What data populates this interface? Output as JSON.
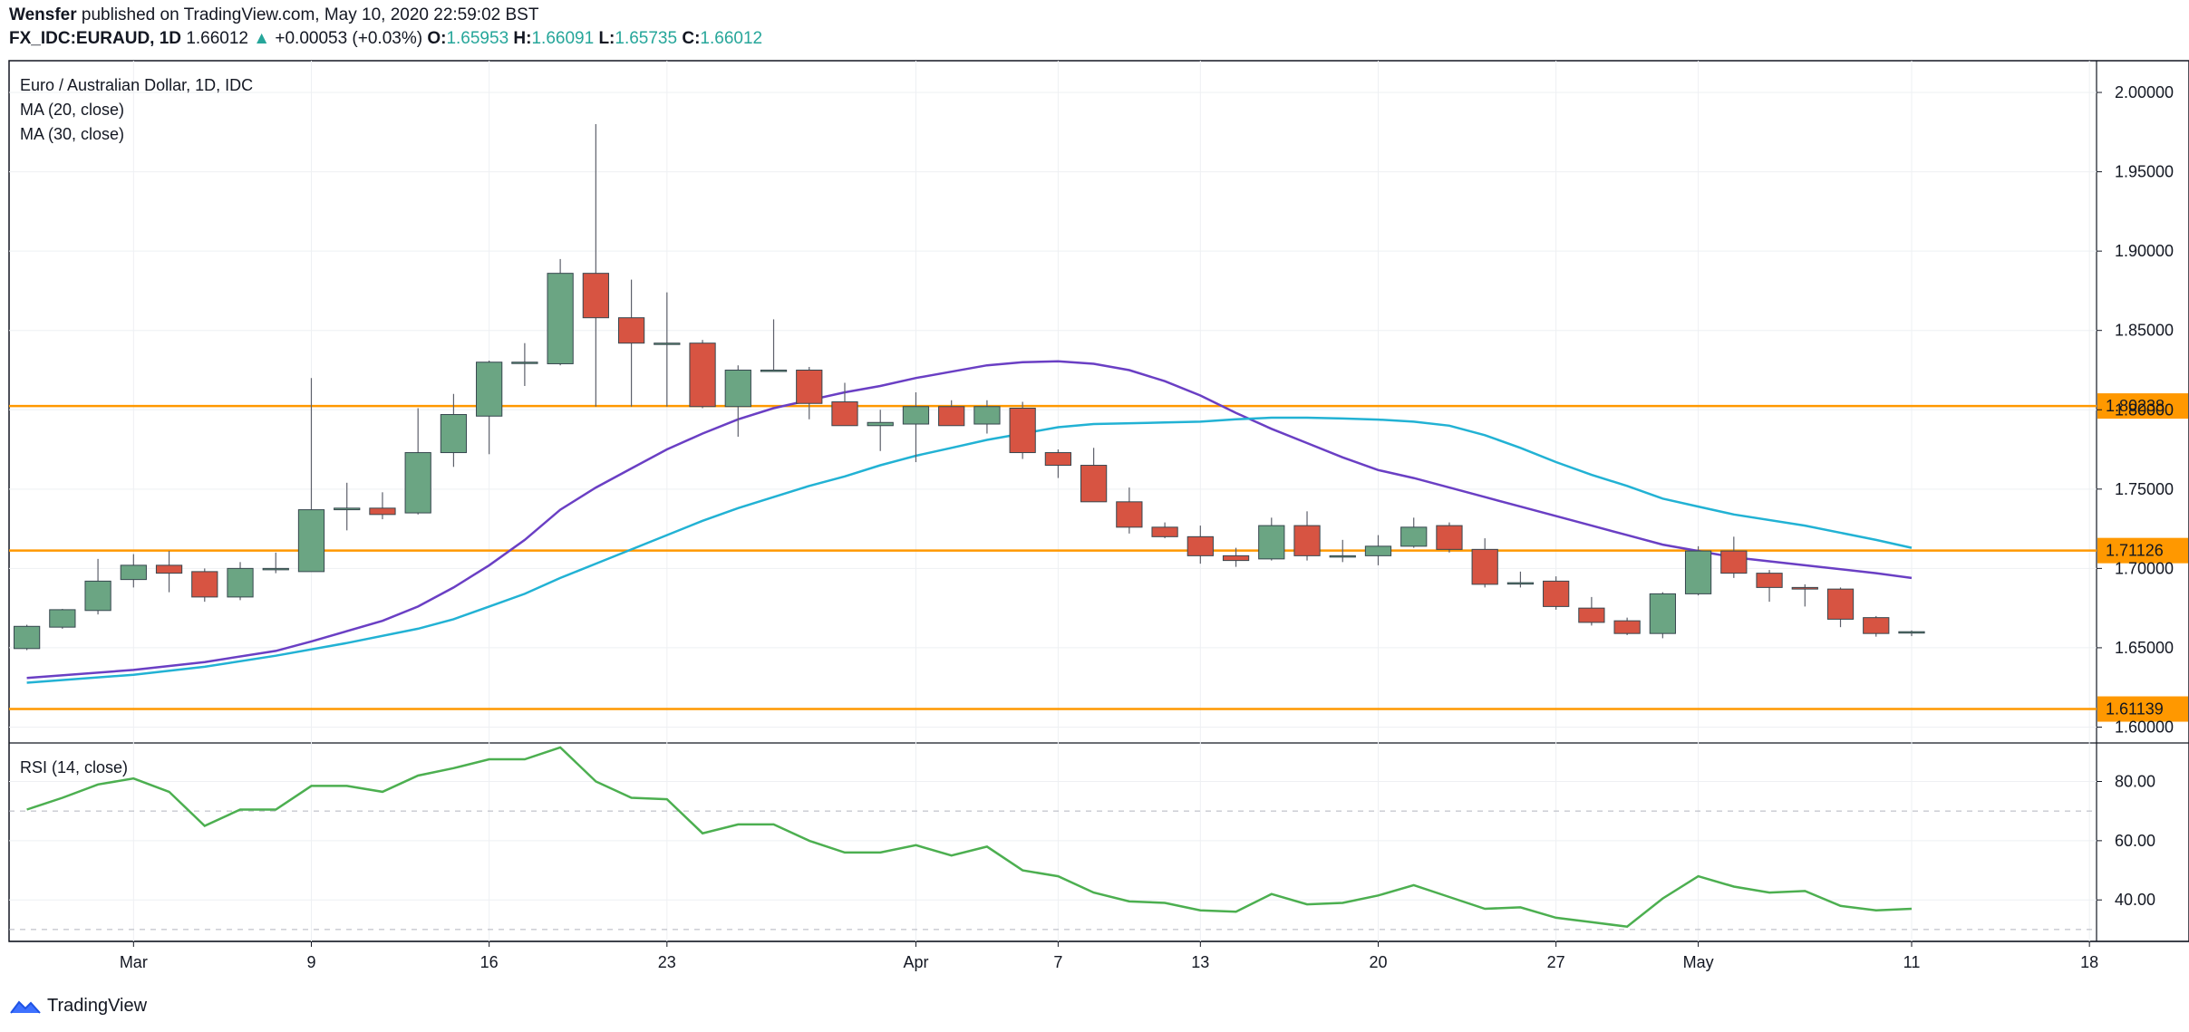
{
  "header": {
    "publisher": "Wensfer",
    "published_text": "published on TradingView.com, May 10, 2020 22:59:02 BST",
    "symbol": "FX_IDC:EURAUD, 1D",
    "last_price": "1.66012",
    "change_arrow": "▲",
    "change": "+0.00053 (+0.03%)",
    "ohlc": [
      {
        "key": "O:",
        "value": "1.65953"
      },
      {
        "key": "H:",
        "value": "1.66091"
      },
      {
        "key": "L:",
        "value": "1.65735"
      },
      {
        "key": "C:",
        "value": "1.66012"
      }
    ]
  },
  "footer": {
    "brand": "TradingView",
    "icon": "tradingview-logo-icon"
  },
  "colors": {
    "up": "#6ba583",
    "down": "#d75442",
    "ma20": "#6a3fc4",
    "ma30": "#22b2d4",
    "rsi": "#4caf50",
    "hline": "#ff9800"
  },
  "chart_data": [
    {
      "type": "candlestick",
      "title": "Euro / Australian Dollar, 1D, IDC",
      "legend": [
        "Euro / Australian Dollar, 1D, IDC",
        "MA (20, close)",
        "MA (30, close)"
      ],
      "ylim": [
        1.59,
        2.02
      ],
      "y_ticks": [
        1.6,
        1.65,
        1.7,
        1.75,
        1.8,
        1.85,
        1.9,
        1.95,
        2.0
      ],
      "y_tick_labels": [
        "1.60000",
        "1.65000",
        "1.70000",
        "1.75000",
        "1.80000",
        "1.85000",
        "1.90000",
        "1.95000",
        "2.00000"
      ],
      "x_tick_labels": [
        {
          "label": "Mar",
          "day": 3
        },
        {
          "label": "9",
          "day": 8
        },
        {
          "label": "16",
          "day": 13
        },
        {
          "label": "23",
          "day": 18
        },
        {
          "label": "Apr",
          "day": 25
        },
        {
          "label": "7",
          "day": 29
        },
        {
          "label": "13",
          "day": 33
        },
        {
          "label": "20",
          "day": 38
        },
        {
          "label": "27",
          "day": 43
        },
        {
          "label": "May",
          "day": 47
        },
        {
          "label": "11",
          "day": 53
        },
        {
          "label": "18",
          "day": 58
        }
      ],
      "x_range": [
        -0.5,
        58.2
      ],
      "candles": [
        [
          1.6495,
          1.6645,
          1.6485,
          1.6635
        ],
        [
          1.663,
          1.6745,
          1.662,
          1.674
        ],
        [
          1.6735,
          1.706,
          1.671,
          1.692
        ],
        [
          1.693,
          1.709,
          1.688,
          1.702
        ],
        [
          1.702,
          1.711,
          1.685,
          1.697
        ],
        [
          1.698,
          1.7,
          1.679,
          1.682
        ],
        [
          1.682,
          1.704,
          1.68,
          1.7
        ],
        [
          1.6995,
          1.71,
          1.697,
          1.7
        ],
        [
          1.698,
          1.82,
          1.698,
          1.737
        ],
        [
          1.737,
          1.754,
          1.724,
          1.738
        ],
        [
          1.738,
          1.748,
          1.731,
          1.734
        ],
        [
          1.735,
          1.801,
          1.734,
          1.773
        ],
        [
          1.773,
          1.81,
          1.764,
          1.797
        ],
        [
          1.796,
          1.831,
          1.772,
          1.83
        ],
        [
          1.83,
          1.842,
          1.815,
          1.83
        ],
        [
          1.829,
          1.895,
          1.828,
          1.886
        ],
        [
          1.886,
          1.98,
          1.802,
          1.858
        ],
        [
          1.858,
          1.882,
          1.802,
          1.842
        ],
        [
          1.842,
          1.874,
          1.802,
          1.842
        ],
        [
          1.842,
          1.844,
          1.801,
          1.802
        ],
        [
          1.802,
          1.828,
          1.783,
          1.825
        ],
        [
          1.825,
          1.857,
          1.824,
          1.825
        ],
        [
          1.825,
          1.827,
          1.794,
          1.804
        ],
        [
          1.805,
          1.817,
          1.79,
          1.79
        ],
        [
          1.79,
          1.8,
          1.774,
          1.792
        ],
        [
          1.791,
          1.811,
          1.767,
          1.802
        ],
        [
          1.802,
          1.806,
          1.79,
          1.79
        ],
        [
          1.791,
          1.806,
          1.785,
          1.802
        ],
        [
          1.801,
          1.805,
          1.769,
          1.773
        ],
        [
          1.773,
          1.775,
          1.757,
          1.765
        ],
        [
          1.765,
          1.776,
          1.742,
          1.742
        ],
        [
          1.742,
          1.751,
          1.722,
          1.726
        ],
        [
          1.726,
          1.729,
          1.719,
          1.72
        ],
        [
          1.72,
          1.727,
          1.703,
          1.708
        ],
        [
          1.708,
          1.713,
          1.701,
          1.705
        ],
        [
          1.706,
          1.732,
          1.705,
          1.727
        ],
        [
          1.727,
          1.736,
          1.705,
          1.708
        ],
        [
          1.708,
          1.718,
          1.704,
          1.708
        ],
        [
          1.708,
          1.721,
          1.702,
          1.714
        ],
        [
          1.714,
          1.732,
          1.713,
          1.726
        ],
        [
          1.727,
          1.729,
          1.71,
          1.712
        ],
        [
          1.712,
          1.719,
          1.688,
          1.69
        ],
        [
          1.691,
          1.698,
          1.688,
          1.691
        ],
        [
          1.692,
          1.695,
          1.674,
          1.676
        ],
        [
          1.675,
          1.682,
          1.664,
          1.666
        ],
        [
          1.667,
          1.669,
          1.658,
          1.659
        ],
        [
          1.659,
          1.685,
          1.656,
          1.684
        ],
        [
          1.684,
          1.714,
          1.683,
          1.711
        ],
        [
          1.711,
          1.72,
          1.694,
          1.697
        ],
        [
          1.697,
          1.699,
          1.679,
          1.688
        ],
        [
          1.688,
          1.69,
          1.676,
          1.687
        ],
        [
          1.687,
          1.688,
          1.663,
          1.668
        ],
        [
          1.669,
          1.67,
          1.657,
          1.659
        ],
        [
          1.65953,
          1.66091,
          1.65735,
          1.66012
        ]
      ],
      "series": [
        {
          "name": "MA (20, close)",
          "values": [
            [
              0,
              1.631
            ],
            [
              3,
              1.636
            ],
            [
              5,
              1.641
            ],
            [
              7,
              1.648
            ],
            [
              8,
              1.654
            ],
            [
              10,
              1.667
            ],
            [
              11,
              1.676
            ],
            [
              12,
              1.688
            ],
            [
              13,
              1.702
            ],
            [
              14,
              1.718
            ],
            [
              15,
              1.737
            ],
            [
              16,
              1.751
            ],
            [
              17,
              1.763
            ],
            [
              18,
              1.775
            ],
            [
              19,
              1.785
            ],
            [
              20,
              1.794
            ],
            [
              21,
              1.801
            ],
            [
              22,
              1.806
            ],
            [
              23,
              1.811
            ],
            [
              24,
              1.815
            ],
            [
              25,
              1.82
            ],
            [
              26,
              1.824
            ],
            [
              27,
              1.828
            ],
            [
              28,
              1.83
            ],
            [
              29,
              1.8305
            ],
            [
              30,
              1.829
            ],
            [
              31,
              1.825
            ],
            [
              32,
              1.818
            ],
            [
              33,
              1.809
            ],
            [
              34,
              1.798
            ],
            [
              35,
              1.788
            ],
            [
              36,
              1.779
            ],
            [
              37,
              1.77
            ],
            [
              38,
              1.762
            ],
            [
              39,
              1.757
            ],
            [
              40,
              1.751
            ],
            [
              41,
              1.745
            ],
            [
              42,
              1.739
            ],
            [
              43,
              1.733
            ],
            [
              44,
              1.727
            ],
            [
              45,
              1.721
            ],
            [
              46,
              1.715
            ],
            [
              47,
              1.711
            ],
            [
              48,
              1.707
            ],
            [
              50,
              1.702
            ],
            [
              52,
              1.697
            ],
            [
              53,
              1.694
            ]
          ]
        },
        {
          "name": "MA (30, close)",
          "values": [
            [
              0,
              1.628
            ],
            [
              3,
              1.633
            ],
            [
              5,
              1.638
            ],
            [
              7,
              1.645
            ],
            [
              9,
              1.653
            ],
            [
              11,
              1.662
            ],
            [
              12,
              1.668
            ],
            [
              13,
              1.676
            ],
            [
              14,
              1.684
            ],
            [
              15,
              1.694
            ],
            [
              16,
              1.703
            ],
            [
              17,
              1.712
            ],
            [
              18,
              1.721
            ],
            [
              19,
              1.73
            ],
            [
              20,
              1.738
            ],
            [
              21,
              1.745
            ],
            [
              22,
              1.752
            ],
            [
              23,
              1.758
            ],
            [
              24,
              1.765
            ],
            [
              25,
              1.771
            ],
            [
              26,
              1.776
            ],
            [
              27,
              1.781
            ],
            [
              28,
              1.785
            ],
            [
              29,
              1.789
            ],
            [
              30,
              1.791
            ],
            [
              32,
              1.792
            ],
            [
              33,
              1.7925
            ],
            [
              34,
              1.794
            ],
            [
              35,
              1.795
            ],
            [
              36,
              1.795
            ],
            [
              37,
              1.7945
            ],
            [
              38,
              1.7938
            ],
            [
              39,
              1.7925
            ],
            [
              40,
              1.79
            ],
            [
              41,
              1.784
            ],
            [
              42,
              1.776
            ],
            [
              43,
              1.767
            ],
            [
              44,
              1.759
            ],
            [
              45,
              1.752
            ],
            [
              46,
              1.744
            ],
            [
              47,
              1.739
            ],
            [
              48,
              1.734
            ],
            [
              50,
              1.727
            ],
            [
              52,
              1.718
            ],
            [
              53,
              1.713
            ]
          ]
        }
      ],
      "horizontal_lines": [
        {
          "value": 1.80238,
          "label": "1.80238"
        },
        {
          "value": 1.71126,
          "label": "1.71126"
        },
        {
          "value": 1.61139,
          "label": "1.61139"
        }
      ]
    },
    {
      "type": "line",
      "title": "RSI (14, close)",
      "ylim": [
        26,
        93
      ],
      "y_ticks": [
        40,
        60,
        80
      ],
      "y_tick_labels": [
        "40.00",
        "60.00",
        "80.00"
      ],
      "bands": [
        30,
        70
      ],
      "series": [
        {
          "name": "RSI (14, close)",
          "values": [
            70.5,
            74.5,
            79,
            81,
            76.5,
            65,
            70.5,
            70.5,
            78.5,
            78.5,
            76.5,
            82,
            84.5,
            87.5,
            87.5,
            91.5,
            80,
            74.5,
            74,
            62.5,
            65.5,
            65.5,
            60,
            56,
            56,
            58.5,
            55,
            58,
            50,
            48,
            42.5,
            39.5,
            39,
            36.5,
            36,
            42,
            38.5,
            39,
            41.5,
            45,
            41,
            37,
            37.5,
            34,
            32.5,
            31,
            40.5,
            48,
            44.5,
            42.5,
            43,
            38,
            36.5,
            37
          ]
        }
      ]
    }
  ]
}
